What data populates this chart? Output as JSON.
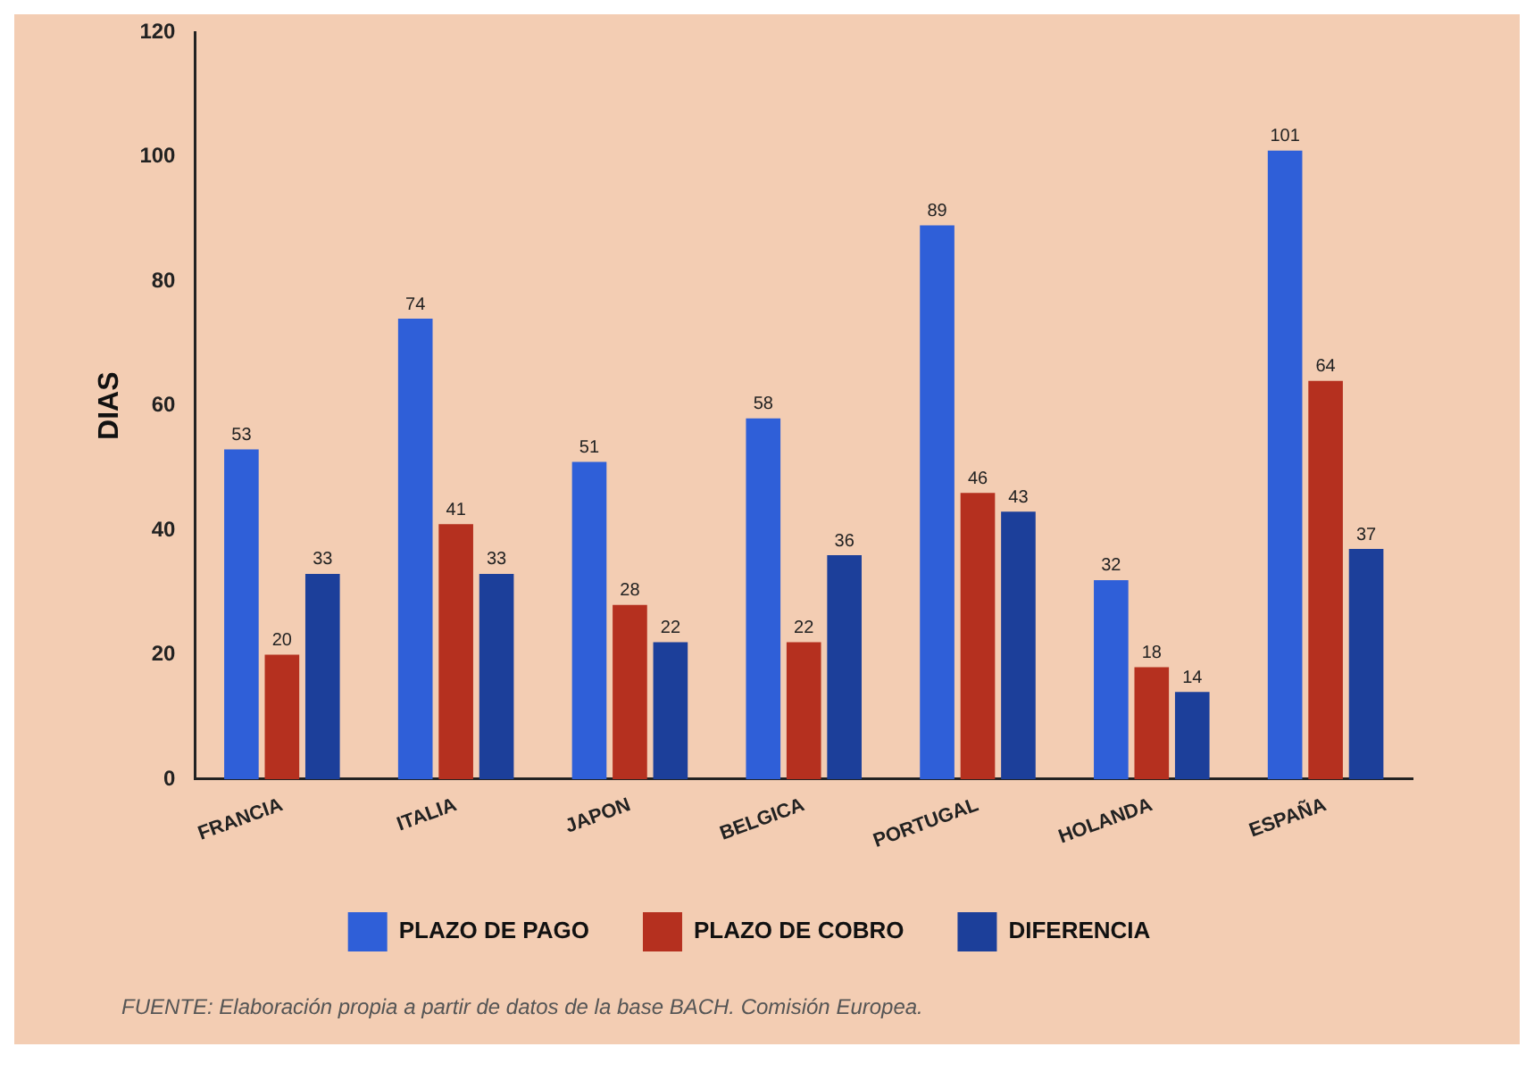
{
  "chart_data": {
    "type": "bar",
    "ylabel": "DIAS",
    "categories": [
      "FRANCIA",
      "ITALIA",
      "JAPON",
      "BELGICA",
      "PORTUGAL",
      "HOLANDA",
      "ESPAÑA"
    ],
    "series": [
      {
        "name": "PLAZO DE PAGO",
        "color": "#2f5fd8",
        "values": [
          53,
          74,
          51,
          58,
          89,
          32,
          101
        ]
      },
      {
        "name": "PLAZO DE COBRO",
        "color": "#b5301f",
        "values": [
          20,
          41,
          28,
          22,
          46,
          18,
          64
        ]
      },
      {
        "name": "DIFERENCIA",
        "color": "#1c3f9a",
        "values": [
          33,
          33,
          22,
          36,
          43,
          14,
          37
        ]
      }
    ],
    "ylim": [
      0,
      120
    ],
    "yticks": [
      0,
      20,
      40,
      60,
      80,
      100,
      120
    ],
    "grid": false,
    "legend": "bottom",
    "data_labels": true,
    "annotations": [
      "FUENTE: Elaboración propia a partir de datos de la base BACH. Comisión Europea."
    ]
  }
}
